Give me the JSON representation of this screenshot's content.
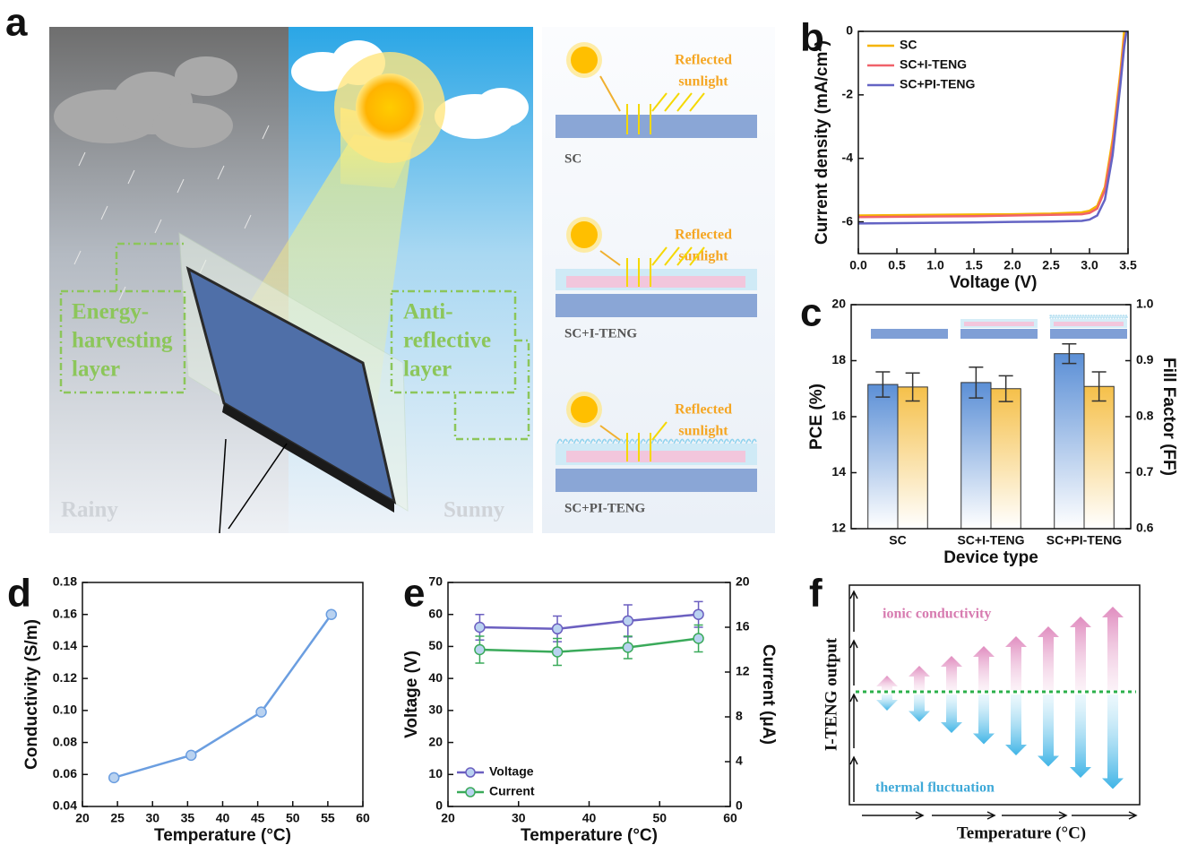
{
  "illustration_a": {
    "letter": "a",
    "left_label": [
      "Energy-",
      "harvesting",
      "layer"
    ],
    "right_label": [
      "Anti-",
      "reflective",
      "layer"
    ],
    "rainy": "Rainy",
    "sunny": "Sunny",
    "devices": [
      {
        "name": "SC",
        "reflected": [
          "Reflected",
          "sunlight"
        ]
      },
      {
        "name": "SC+I-TENG",
        "reflected": [
          "Reflected",
          "sunlight"
        ]
      },
      {
        "name": "SC+PI-TENG",
        "reflected": [
          "Reflected",
          "sunlight"
        ]
      }
    ]
  },
  "chart_data": [
    {
      "type": "line",
      "panel_label": "b",
      "x_label": "Voltage (V)",
      "y_label": "Current density (mA/cm²)",
      "x": [
        0,
        0.5,
        1,
        1.5,
        2,
        2.5,
        2.9,
        3,
        3.1,
        3.2,
        3.3,
        3.4,
        3.45,
        3.48
      ],
      "series": [
        {
          "name": "SC",
          "color": "#f5b400",
          "values": [
            -5.8,
            -5.79,
            -5.78,
            -5.77,
            -5.76,
            -5.74,
            -5.7,
            -5.65,
            -5.5,
            -4.9,
            -3.4,
            -1.3,
            0,
            null
          ]
        },
        {
          "name": "SC+I-TENG",
          "color": "#f0626a",
          "values": [
            -5.85,
            -5.84,
            -5.83,
            -5.82,
            -5.8,
            -5.78,
            -5.76,
            -5.72,
            -5.58,
            -5.0,
            -3.6,
            -1.5,
            -0.3,
            0
          ]
        },
        {
          "name": "SC+PI-TENG",
          "color": "#6464c4",
          "values": [
            -6.05,
            -6.04,
            -6.03,
            -6.02,
            -6.0,
            -5.99,
            -5.97,
            -5.93,
            -5.8,
            -5.3,
            -3.9,
            -1.7,
            -0.5,
            0
          ]
        }
      ],
      "xlim": [
        0,
        3.5
      ],
      "xticks": [
        {
          "value": 0,
          "label": "0.0"
        },
        0.5,
        {
          "value": 1,
          "label": "1.0"
        },
        1.5,
        {
          "value": 2,
          "label": "2.0"
        },
        2.5,
        {
          "value": 3,
          "label": "3.0"
        },
        3.5
      ],
      "ylim": [
        -7,
        0
      ],
      "yticks": [
        0,
        -2,
        -4,
        -6
      ],
      "legend": "upper left"
    },
    {
      "type": "bar",
      "panel_label": "c",
      "x_label": "Device type",
      "y_label": "PCE (%)",
      "y2_label": "Fill Factor (FF)",
      "categories": [
        "SC",
        "SC+I-TENG",
        "SC+PI-TENG"
      ],
      "series": [
        {
          "name": "PCE",
          "color": "#5b8fd6",
          "values": [
            17.15,
            17.22,
            18.25
          ],
          "errors": [
            0.45,
            0.55,
            0.35
          ]
        },
        {
          "name": "FF",
          "color": "#f5c04a",
          "axis": "y2",
          "values": [
            0.853,
            0.85,
            0.854
          ],
          "errors": [
            0.025,
            0.023,
            0.026
          ]
        }
      ],
      "ylim": [
        12,
        20
      ],
      "yticks": [
        12,
        14,
        16,
        18,
        20
      ],
      "y2lim": [
        0.6,
        1
      ],
      "y2ticks": [
        0.6,
        0.7,
        0.8,
        0.9,
        {
          "value": 1,
          "label": "1.0"
        }
      ]
    },
    {
      "type": "line",
      "panel_label": "d",
      "x_label": "Temperature (°C)",
      "y_label": "Conductivity (S/m)",
      "x": [
        24.5,
        35.5,
        45.5,
        55.5
      ],
      "values": [
        0.058,
        0.072,
        0.099,
        0.16
      ],
      "color": "#6b9ee0",
      "markers": true,
      "xlim": [
        20,
        60
      ],
      "xticks": [
        20,
        25,
        30,
        35,
        40,
        45,
        50,
        55,
        60
      ],
      "ylim": [
        0.04,
        0.18
      ],
      "yticks": [
        0.04,
        0.06,
        0.08,
        {
          "value": 0.1,
          "label": "0.10"
        },
        0.12,
        0.14,
        0.16,
        0.18
      ]
    },
    {
      "type": "line",
      "panel_label": "e",
      "x_label": "Temperature (°C)",
      "y_label": "Voltage (V)",
      "y2_label": "Current (μA)",
      "x": [
        24.5,
        35.5,
        45.5,
        55.5
      ],
      "markers": true,
      "series": [
        {
          "name": "Voltage",
          "color": "#6b5fc0",
          "values": [
            56,
            55.5,
            58,
            60
          ],
          "errors": [
            4,
            4,
            5,
            4
          ]
        },
        {
          "name": "Current",
          "color": "#3aaa5a",
          "axis": "y2",
          "values": [
            14,
            13.8,
            14.2,
            15
          ],
          "errors": [
            1.2,
            1.2,
            1,
            1.2
          ]
        }
      ],
      "xlim": [
        20,
        60
      ],
      "xticks": [
        20,
        30,
        40,
        50,
        60
      ],
      "ylim": [
        0,
        70
      ],
      "yticks": [
        0,
        10,
        20,
        30,
        40,
        50,
        60,
        70
      ],
      "y2lim": [
        0,
        20
      ],
      "y2ticks": [
        0,
        4,
        8,
        12,
        16,
        20
      ],
      "legend": "lower left"
    }
  ],
  "diagram_f": {
    "letter": "f",
    "top_label": "ionic conductivity",
    "bottom_label": "thermal fluctuation",
    "y_label": "I-TENG output",
    "x_label": "Temperature (°C)"
  }
}
